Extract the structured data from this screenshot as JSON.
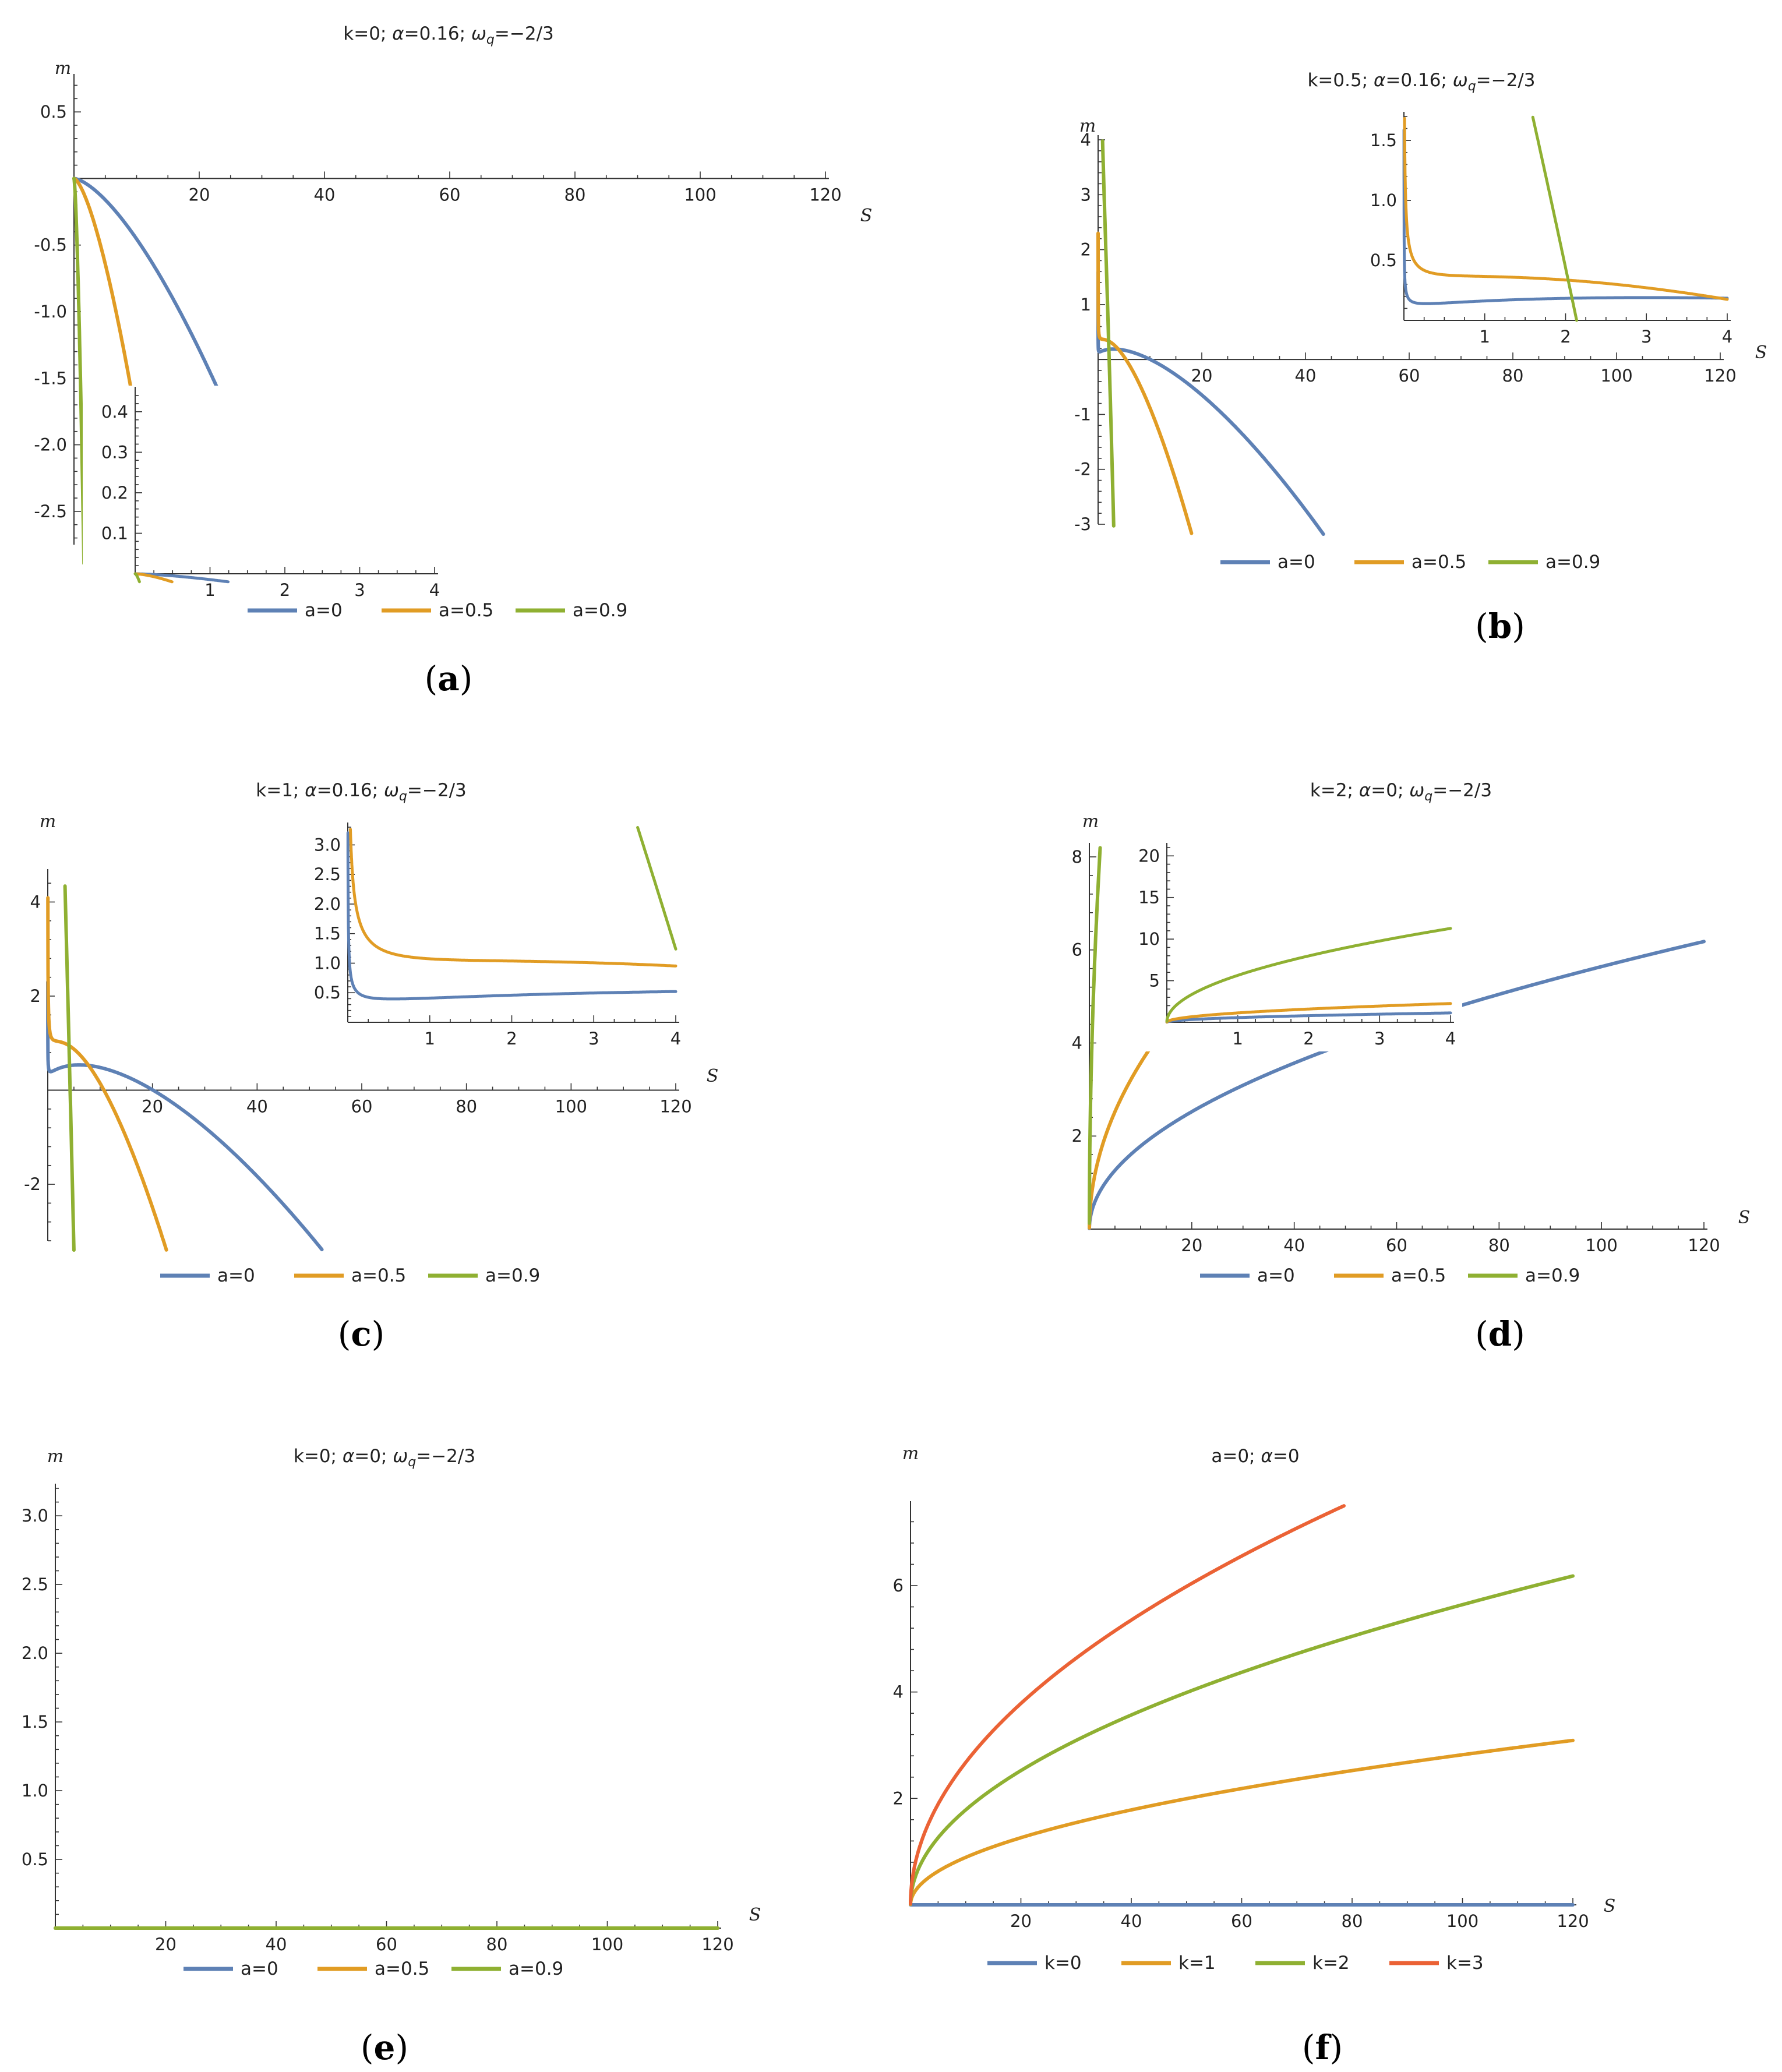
{
  "colors": {
    "blue": "#5E81B5",
    "orange": "#E19C24",
    "green": "#8FB032",
    "red": "#EB6235"
  },
  "chart_data": [
    {
      "id": "a",
      "type": "line",
      "caption": "(a)",
      "title_html": "k=0; <tspan font-style='italic'>α</tspan>=0.16; <tspan font-style='italic'>ω</tspan><tspan font-style='italic' font-size='22' dy='7'>q</tspan><tspan dy='-7'>=−2/3</tspan>",
      "xlabel": "S",
      "ylabel": "m",
      "xlim": [
        0,
        120
      ],
      "ylim": [
        -2.75,
        0.75
      ],
      "xticks": [
        "20",
        "40",
        "60",
        "80",
        "100",
        "120"
      ],
      "yticks": [
        "0.5",
        "-0.5",
        "-1.0",
        "-1.5",
        "-2.0",
        "-2.5"
      ],
      "params": {
        "k": 0,
        "alpha": 0.16
      },
      "legend": [
        "a=0",
        "a=0.5",
        "a=0.9"
      ],
      "series": [
        {
          "name": "a=0",
          "a": 0,
          "color": "blue"
        },
        {
          "name": "a=0.5",
          "a": 0.5,
          "color": "orange"
        },
        {
          "name": "a=0.9",
          "a": 0.9,
          "color": "green"
        }
      ],
      "inset": {
        "xlim": [
          0,
          4
        ],
        "ylim": [
          0,
          0.45
        ],
        "xticks": [
          "1",
          "2",
          "3",
          "4"
        ],
        "yticks": [
          "0.1",
          "0.2",
          "0.3",
          "0.4"
        ]
      }
    },
    {
      "id": "b",
      "type": "line",
      "caption": "(b)",
      "title_html": "k=0.5; <tspan font-style='italic'>α</tspan>=0.16; <tspan font-style='italic'>ω</tspan><tspan font-style='italic' font-size='22' dy='7'>q</tspan><tspan dy='-7'>=−2/3</tspan>",
      "xlabel": "S",
      "ylabel": "m",
      "xlim": [
        0,
        120
      ],
      "ylim": [
        -3,
        4
      ],
      "xticks": [
        "20",
        "40",
        "60",
        "80",
        "100",
        "120"
      ],
      "yticks": [
        "4",
        "3",
        "2",
        "1",
        "-1",
        "-2",
        "-3"
      ],
      "params": {
        "k": 0.5,
        "alpha": 0.16
      },
      "legend": [
        "a=0",
        "a=0.5",
        "a=0.9"
      ],
      "series": [
        {
          "name": "a=0",
          "a": 0,
          "color": "blue"
        },
        {
          "name": "a=0.5",
          "a": 0.5,
          "color": "orange"
        },
        {
          "name": "a=0.9",
          "a": 0.9,
          "color": "green"
        }
      ],
      "inset": {
        "xlim": [
          0,
          4
        ],
        "ylim": [
          0,
          1.7
        ],
        "xticks": [
          "1",
          "2",
          "3",
          "4"
        ],
        "yticks": [
          "0.5",
          "1.0",
          "1.5"
        ]
      }
    },
    {
      "id": "c",
      "type": "line",
      "caption": "(c)",
      "title_html": "k=1; <tspan font-style='italic'>α</tspan>=0.16; <tspan font-style='italic'>ω</tspan><tspan font-style='italic' font-size='22' dy='7'>q</tspan><tspan dy='-7'>=−2/3</tspan>",
      "xlabel": "S",
      "ylabel": "m",
      "xlim": [
        0,
        120
      ],
      "ylim": [
        -3.2,
        4.6
      ],
      "xticks": [
        "20",
        "40",
        "60",
        "80",
        "100",
        "120"
      ],
      "yticks": [
        "4",
        "2",
        "-2"
      ],
      "params": {
        "k": 1,
        "alpha": 0.16
      },
      "legend": [
        "a=0",
        "a=0.5",
        "a=0.9"
      ],
      "series": [
        {
          "name": "a=0",
          "a": 0,
          "color": "blue"
        },
        {
          "name": "a=0.5",
          "a": 0.5,
          "color": "orange"
        },
        {
          "name": "a=0.9",
          "a": 0.9,
          "color": "green"
        }
      ],
      "inset": {
        "xlim": [
          0,
          4
        ],
        "ylim": [
          0,
          3.3
        ],
        "xticks": [
          "1",
          "2",
          "3",
          "4"
        ],
        "yticks": [
          "0.5",
          "1.0",
          "1.5",
          "2.0",
          "2.5",
          "3.0"
        ]
      }
    },
    {
      "id": "d",
      "type": "line",
      "caption": "(d)",
      "title_html": "k=2; <tspan font-style='italic'>α</tspan>=0; <tspan font-style='italic'>ω</tspan><tspan font-style='italic' font-size='22' dy='7'>q</tspan><tspan dy='-7'>=−2/3</tspan>",
      "xlabel": "S",
      "ylabel": "m",
      "xlim": [
        0,
        120
      ],
      "ylim": [
        0,
        8.2
      ],
      "xticks": [
        "20",
        "40",
        "60",
        "80",
        "100",
        "120"
      ],
      "yticks": [
        "8",
        "6",
        "4",
        "2"
      ],
      "params": {
        "k": 2,
        "alpha": 0
      },
      "legend": [
        "a=0",
        "a=0.5",
        "a=0.9"
      ],
      "series": [
        {
          "name": "a=0",
          "a": 0,
          "color": "blue"
        },
        {
          "name": "a=0.5",
          "a": 0.5,
          "color": "orange"
        },
        {
          "name": "a=0.9",
          "a": 0.9,
          "color": "green"
        }
      ],
      "inset": {
        "xlim": [
          0,
          4
        ],
        "ylim": [
          0,
          21
        ],
        "xticks": [
          "1",
          "2",
          "3",
          "4"
        ],
        "yticks": [
          "5",
          "10",
          "15",
          "20"
        ]
      }
    },
    {
      "id": "e",
      "type": "line",
      "caption": "(e)",
      "title_html": "k=0; <tspan font-style='italic'>α</tspan>=0; <tspan font-style='italic'>ω</tspan><tspan font-style='italic' font-size='22' dy='7'>q</tspan><tspan dy='-7'>=−2/3</tspan>",
      "xlabel": "S",
      "ylabel": "m",
      "xlim": [
        0,
        120
      ],
      "ylim": [
        0,
        3.2
      ],
      "xticks": [
        "20",
        "40",
        "60",
        "80",
        "100",
        "120"
      ],
      "yticks": [
        "0.5",
        "1.0",
        "1.5",
        "2.0",
        "2.5",
        "3.0"
      ],
      "params": {
        "k": 0,
        "alpha": 0
      },
      "legend": [
        "a=0",
        "a=0.5",
        "a=0.9"
      ],
      "series": [
        {
          "name": "a=0",
          "a": 0,
          "color": "blue"
        },
        {
          "name": "a=0.5",
          "a": 0.5,
          "color": "orange"
        },
        {
          "name": "a=0.9",
          "a": 0.9,
          "color": "green"
        }
      ]
    },
    {
      "id": "f",
      "type": "line",
      "caption": "(f)",
      "title_html": "a=0; <tspan font-style='italic'>α</tspan>=0",
      "xlabel": "S",
      "ylabel": "m",
      "xlim": [
        0,
        120
      ],
      "ylim": [
        0,
        7.5
      ],
      "xticks": [
        "20",
        "40",
        "60",
        "80",
        "100",
        "120"
      ],
      "yticks": [
        "6",
        "4",
        "2"
      ],
      "params": {
        "a": 0,
        "alpha": 0
      },
      "legend": [
        "k=0",
        "k=1",
        "k=2",
        "k=3"
      ],
      "series": [
        {
          "name": "k=0",
          "k": 0,
          "color": "blue"
        },
        {
          "name": "k=1",
          "k": 1,
          "color": "orange"
        },
        {
          "name": "k=2",
          "k": 2,
          "color": "green"
        },
        {
          "name": "k=3",
          "k": 3,
          "color": "red"
        }
      ]
    }
  ]
}
